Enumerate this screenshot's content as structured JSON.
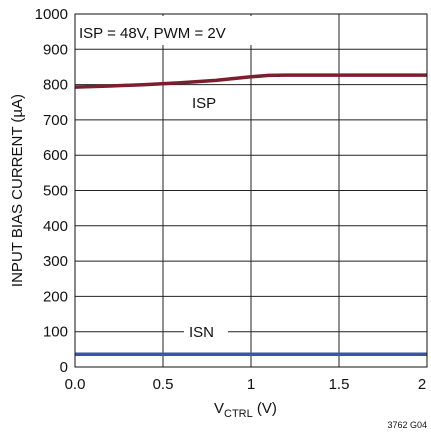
{
  "chart_data": {
    "type": "line",
    "title": "",
    "xlabel_main": "V",
    "xlabel_sub": "CTRL",
    "xlabel_unit": " (V)",
    "ylabel": "INPUT BIAS CURRENT (µA)",
    "xlim": [
      0,
      2
    ],
    "ylim": [
      0,
      1000
    ],
    "x_ticks": [
      "0.0",
      "0.5",
      "1",
      "1.5",
      "2"
    ],
    "y_ticks": [
      "0",
      "100",
      "200",
      "300",
      "400",
      "500",
      "600",
      "700",
      "800",
      "900",
      "1000"
    ],
    "grid": true,
    "condition_label": "ISP = 48V, PWM = 2V",
    "figure_code": "3762 G04",
    "series": [
      {
        "name": "ISP",
        "color": "#7b1f2e",
        "x": [
          0.0,
          0.2,
          0.4,
          0.6,
          0.8,
          1.0,
          1.1,
          1.2,
          1.4,
          1.6,
          1.8,
          2.0
        ],
        "y": [
          793,
          796,
          800,
          805,
          812,
          822,
          826,
          827,
          827,
          827,
          827,
          827
        ]
      },
      {
        "name": "ISN",
        "color": "#3a55a4",
        "x": [
          0.0,
          0.5,
          1.0,
          1.5,
          2.0
        ],
        "y": [
          36,
          36,
          36,
          36,
          36
        ]
      }
    ]
  }
}
